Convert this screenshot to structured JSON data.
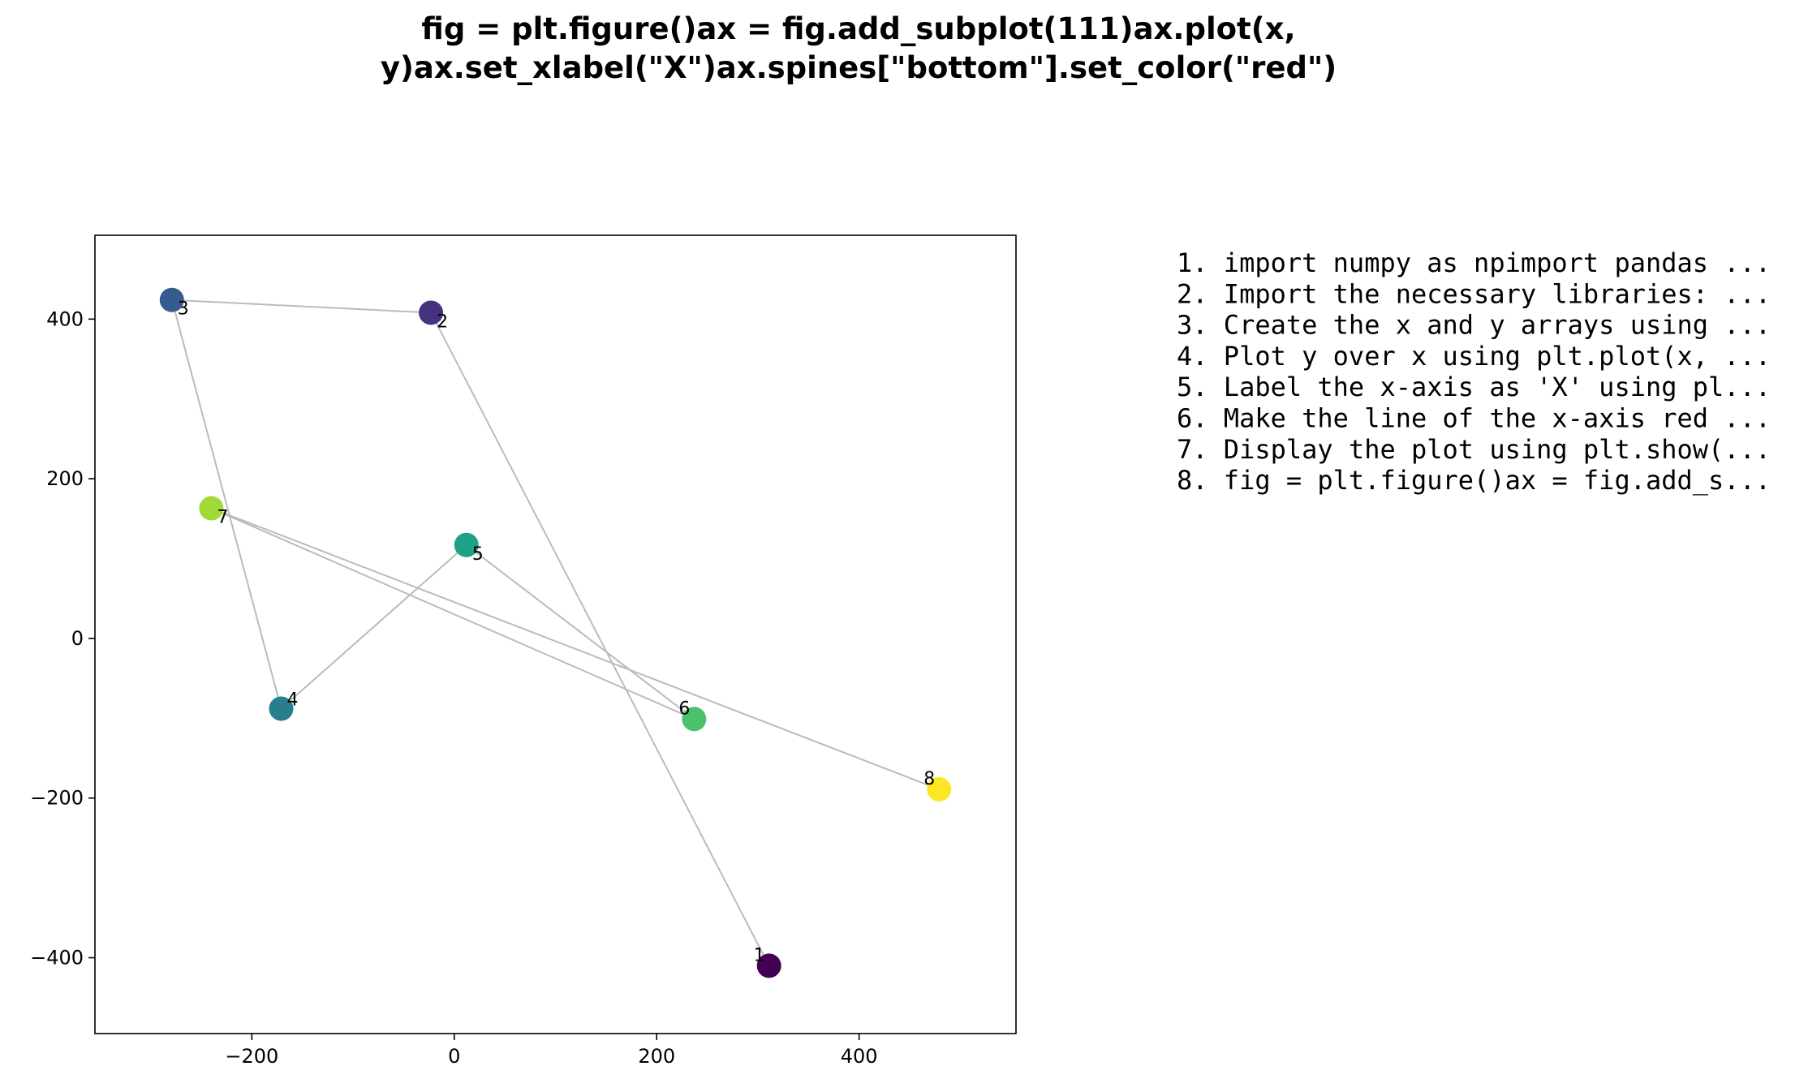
{
  "chart_data": {
    "type": "scatter",
    "title_lines": [
      "fig = plt.figure()ax = fig.add_subplot(111)ax.plot(x,",
      "y)ax.set_xlabel(\"X\")ax.spines[\"bottom\"].set_color(\"red\")"
    ],
    "xlabel": "",
    "ylabel": "",
    "xlim": [
      -355,
      555
    ],
    "ylim": [
      -495,
      505
    ],
    "xticks": [
      -200,
      0,
      200,
      400
    ],
    "xtick_labels": [
      "−200",
      "0",
      "200",
      "400"
    ],
    "yticks": [
      -400,
      -200,
      0,
      200,
      400
    ],
    "ytick_labels": [
      "−400",
      "−200",
      "0",
      "200",
      "400"
    ],
    "grid": false,
    "line_color": "#bbbbbb",
    "points": [
      {
        "label": "1",
        "x": 311,
        "y": -410,
        "color": "#440154"
      },
      {
        "label": "2",
        "x": -23,
        "y": 408,
        "color": "#46327e"
      },
      {
        "label": "3",
        "x": -279,
        "y": 424,
        "color": "#365c8d"
      },
      {
        "label": "4",
        "x": -171,
        "y": -88,
        "color": "#277f8e"
      },
      {
        "label": "5",
        "x": 12,
        "y": 117,
        "color": "#1fa187"
      },
      {
        "label": "6",
        "x": 237,
        "y": -101,
        "color": "#4ac16d"
      },
      {
        "label": "7",
        "x": -240,
        "y": 163,
        "color": "#a0da39"
      },
      {
        "label": "8",
        "x": 479,
        "y": -189,
        "color": "#fde725"
      }
    ],
    "path_order": [
      "1",
      "2",
      "3",
      "4",
      "5",
      "6",
      "7",
      "8"
    ]
  },
  "steps": [
    "1. import numpy as npimport pandas ...",
    "2. Import the necessary libraries: ...",
    "3. Create the x and y arrays using ...",
    "4. Plot y over x using plt.plot(x, ...",
    "5. Label the x-axis as 'X' using pl...",
    "6. Make the line of the x-axis red ...",
    "7. Display the plot using plt.show(...",
    "8. fig = plt.figure()ax = fig.add_s..."
  ]
}
